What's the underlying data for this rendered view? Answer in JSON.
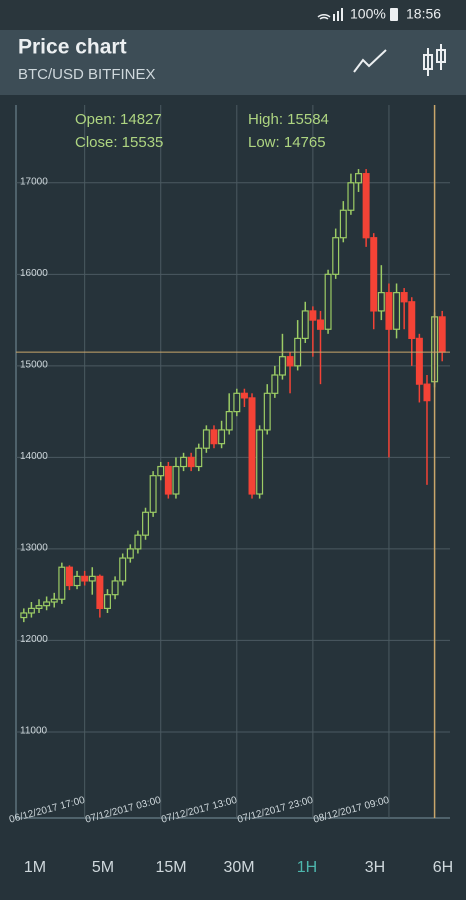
{
  "status_bar": {
    "battery": "100%",
    "time": "18:56"
  },
  "header": {
    "title": "Price chart",
    "subtitle": "BTC/USD BITFINEX"
  },
  "info": {
    "open": "Open: 14827",
    "close": "Close: 15535",
    "high": "High: 15584",
    "low": "Low: 14765"
  },
  "chart_data": {
    "type": "candlestick",
    "categories": [
      null,
      null,
      null,
      null,
      null,
      null,
      null,
      null,
      "06/12/2017 17:00",
      null,
      null,
      null,
      null,
      null,
      null,
      null,
      null,
      null,
      "07/12/2017 03:00",
      null,
      null,
      null,
      null,
      null,
      null,
      null,
      null,
      null,
      "07/12/2017 13:00",
      null,
      null,
      null,
      null,
      null,
      null,
      null,
      null,
      null,
      "07/12/2017 23:00",
      null,
      null,
      null,
      null,
      null,
      null,
      null,
      null,
      null,
      "08/12/2017 09:00",
      null,
      null,
      null,
      null,
      null,
      null,
      null
    ],
    "open": [
      12250,
      12300,
      12350,
      12380,
      12420,
      12450,
      12800,
      12600,
      12700,
      12650,
      12700,
      12350,
      12500,
      12650,
      12900,
      13000,
      13150,
      13400,
      13800,
      13900,
      13600,
      13900,
      14000,
      13900,
      14100,
      14300,
      14150,
      14300,
      14500,
      14700,
      14650,
      13600,
      14300,
      14700,
      14900,
      15100,
      15000,
      15300,
      15600,
      15500,
      15400,
      16000,
      16400,
      16700,
      17000,
      17100,
      16400,
      15600,
      15800,
      15400,
      15800,
      15700,
      15300,
      14800,
      14827,
      15535
    ],
    "high": [
      12350,
      12420,
      12450,
      12480,
      12520,
      12850,
      12820,
      12760,
      12760,
      12800,
      12720,
      12560,
      12700,
      12950,
      13050,
      13200,
      13450,
      13850,
      13950,
      13950,
      14000,
      14050,
      14050,
      14150,
      14350,
      14350,
      14400,
      14700,
      14750,
      14750,
      14700,
      14350,
      14800,
      15000,
      15350,
      15150,
      15500,
      15700,
      15650,
      15600,
      16050,
      16500,
      16800,
      17100,
      17150,
      17150,
      16450,
      16100,
      15900,
      15900,
      15850,
      15750,
      15350,
      14900,
      15584,
      15600
    ],
    "low": [
      12200,
      12250,
      12300,
      12330,
      12360,
      12400,
      12550,
      12560,
      12600,
      12500,
      12250,
      12300,
      12450,
      12600,
      12850,
      12950,
      13100,
      13350,
      13750,
      13550,
      13550,
      13850,
      13850,
      13850,
      14050,
      14100,
      14100,
      14250,
      14450,
      14550,
      13550,
      13550,
      14250,
      14650,
      14850,
      14700,
      14950,
      15250,
      15100,
      14800,
      15350,
      15950,
      16350,
      16650,
      16900,
      16300,
      15400,
      15500,
      14000,
      15300,
      15400,
      15000,
      14600,
      13700,
      14765,
      15050
    ],
    "close": [
      12300,
      12350,
      12380,
      12420,
      12450,
      12800,
      12600,
      12700,
      12650,
      12700,
      12350,
      12500,
      12650,
      12900,
      13000,
      13150,
      13400,
      13800,
      13900,
      13600,
      13900,
      14000,
      13900,
      14100,
      14300,
      14150,
      14300,
      14500,
      14700,
      14650,
      13600,
      14300,
      14700,
      14900,
      15100,
      15000,
      15300,
      15600,
      15500,
      15400,
      16000,
      16400,
      16700,
      17000,
      17100,
      16400,
      15600,
      15800,
      15400,
      15800,
      15700,
      15300,
      14800,
      14620,
      15535,
      15150
    ],
    "up_color": "#9ccc65",
    "down_color": "#f44336",
    "ylim": [
      10060,
      17850
    ],
    "yticks": [
      11000,
      12000,
      13000,
      14000,
      15000,
      16000,
      17000
    ],
    "grid": true
  },
  "tabs": {
    "items": [
      "1M",
      "5M",
      "15M",
      "30M",
      "1H",
      "3H",
      "6H"
    ],
    "selected": 4
  }
}
